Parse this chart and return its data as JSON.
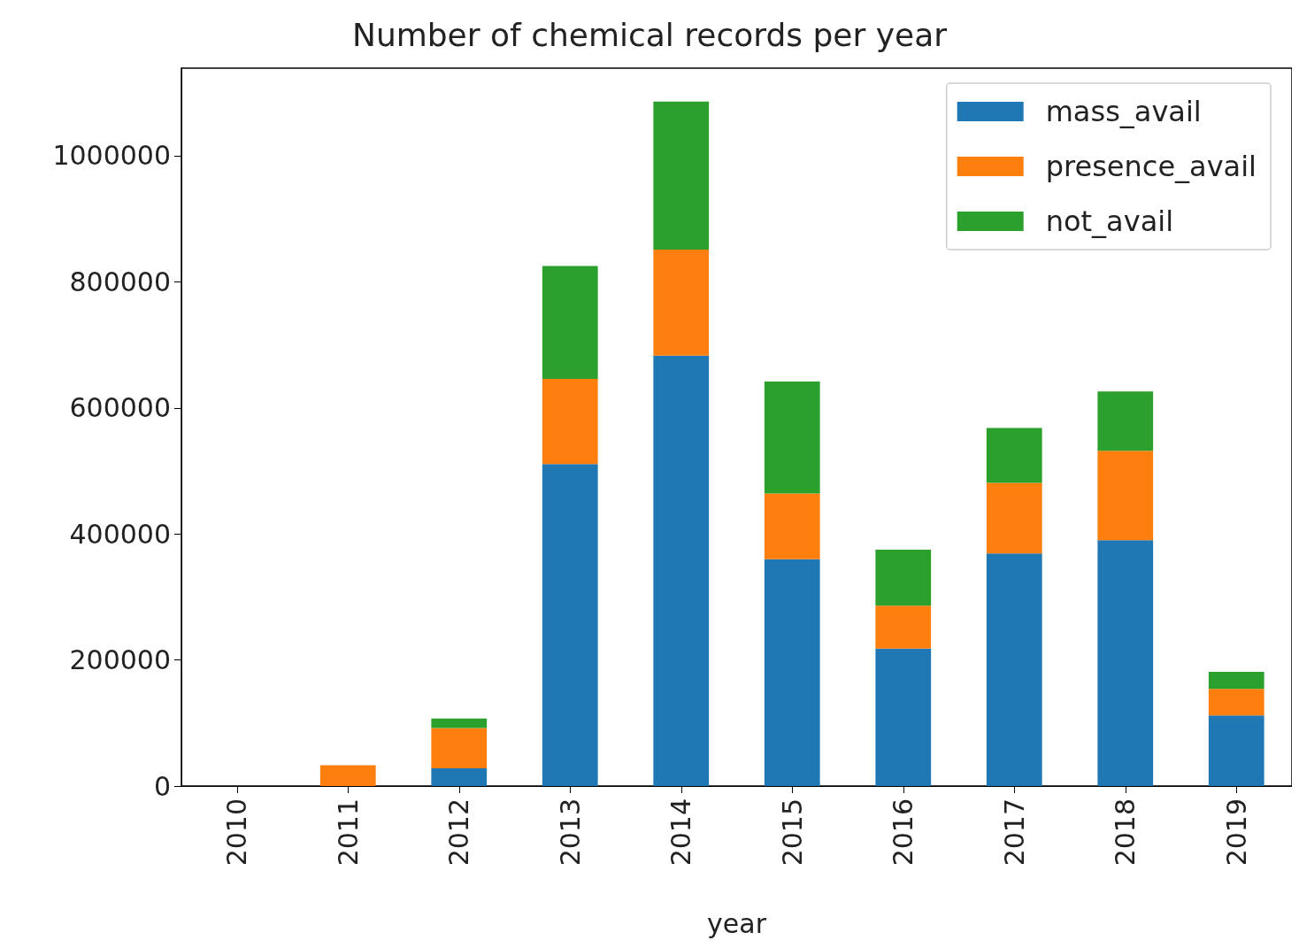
{
  "chart_data": {
    "type": "bar",
    "title": "Number of chemical records per year",
    "xlabel": "year",
    "categories": [
      "2010",
      "2011",
      "2012",
      "2013",
      "2014",
      "2015",
      "2016",
      "2017",
      "2018",
      "2019"
    ],
    "stacked": true,
    "series": [
      {
        "name": "mass_avail",
        "color": "#1f77b4",
        "values": [
          0,
          0,
          28000,
          511000,
          683000,
          360000,
          218000,
          369000,
          390000,
          112000
        ]
      },
      {
        "name": "presence_avail",
        "color": "#ff7f0e",
        "values": [
          0,
          33000,
          64000,
          135000,
          168000,
          104000,
          68000,
          112000,
          142000,
          42000
        ]
      },
      {
        "name": "not_avail",
        "color": "#2ca02c",
        "values": [
          0,
          0,
          15000,
          179000,
          235000,
          178000,
          89000,
          87000,
          94000,
          27000
        ]
      }
    ],
    "ylim": [
      0,
      1139000
    ],
    "yticks": [
      0,
      200000,
      400000,
      600000,
      800000,
      1000000
    ],
    "grid": false,
    "legend": "top right"
  }
}
